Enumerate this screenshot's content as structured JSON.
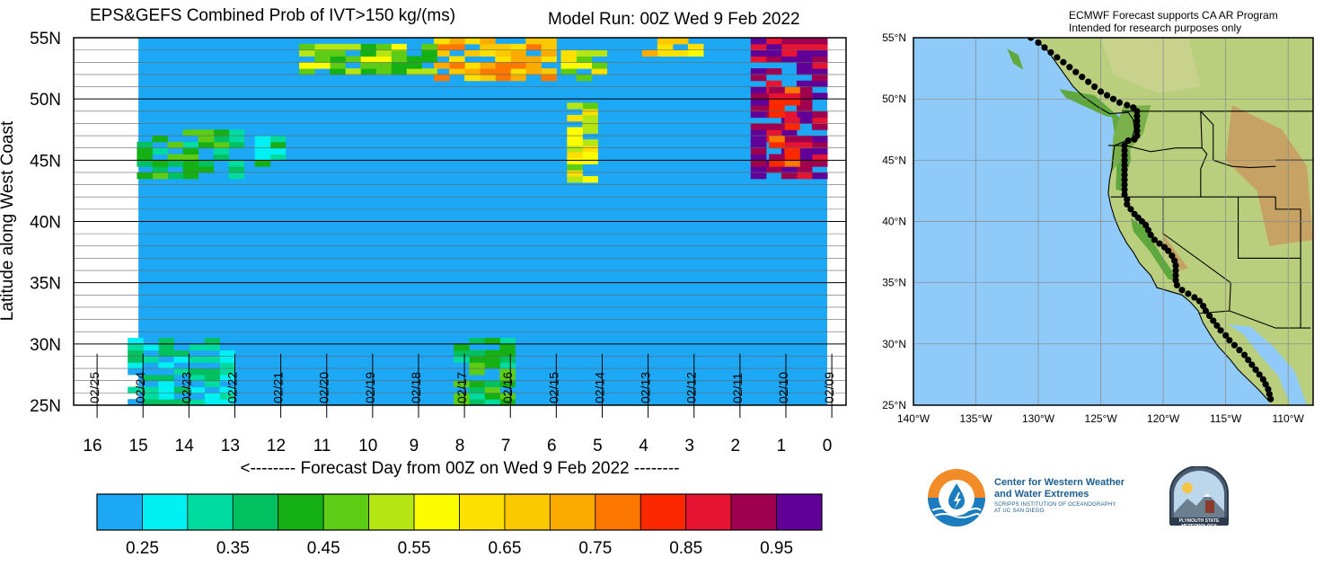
{
  "header": {
    "title_left": "EPS&GEFS Combined Prob of IVT>150 kg/(ms)",
    "title_right": "Model Run: 00Z Wed 9 Feb 2022",
    "map_credit_line1": "ECMWF Forecast supports CA AR Program",
    "map_credit_line2": "Intended for research purposes only"
  },
  "logos": {
    "cw3e_line1": "Center for Western Weather",
    "cw3e_line2": "and Water Extremes",
    "cw3e_line3": "SCRIPPS INSTITUTION OF OCEANOGRAPHY",
    "cw3e_line4": "AT UC SAN DIEGO",
    "psu_text": "PLYMOUTH STATE METEOROLOGY"
  },
  "colors": {
    "background_prob": "#1ca8f4",
    "frame": "#000000",
    "ocean": "#8fcaf8",
    "terrain_low": "#5ea83c",
    "terrain_mid": "#b9cf7d",
    "terrain_high": "#c6a264"
  },
  "chart_data": [
    {
      "type": "heatmap",
      "title": "EPS&GEFS Combined Prob of IVT>150 kg/(ms)",
      "xlabel": "<-------- Forecast Day from 00Z on Wed 9 Feb 2022 --------",
      "ylabel": "Latitude along West Coast",
      "x_axis": {
        "range": [
          16,
          0
        ],
        "reversed": true,
        "ticks": [
          16,
          15,
          14,
          13,
          12,
          11,
          10,
          9,
          8,
          7,
          6,
          5,
          4,
          3,
          2,
          1,
          0
        ]
      },
      "y_axis": {
        "range": [
          25,
          55
        ],
        "ticks": [
          "25N",
          "30N",
          "35N",
          "40N",
          "45N",
          "50N",
          "55N"
        ],
        "tick_values": [
          25,
          30,
          35,
          40,
          45,
          50,
          55
        ]
      },
      "date_labels": [
        {
          "day": 15.9,
          "text": "02/25"
        },
        {
          "day": 14.9,
          "text": "02/24"
        },
        {
          "day": 13.9,
          "text": "02/23"
        },
        {
          "day": 12.9,
          "text": "02/22"
        },
        {
          "day": 11.9,
          "text": "02/21"
        },
        {
          "day": 10.9,
          "text": "02/20"
        },
        {
          "day": 9.9,
          "text": "02/19"
        },
        {
          "day": 8.9,
          "text": "02/18"
        },
        {
          "day": 7.9,
          "text": "02/17"
        },
        {
          "day": 6.9,
          "text": "02/16"
        },
        {
          "day": 5.9,
          "text": "02/15"
        },
        {
          "day": 4.9,
          "text": "02/14"
        },
        {
          "day": 3.9,
          "text": "02/13"
        },
        {
          "day": 2.9,
          "text": "02/12"
        },
        {
          "day": 1.9,
          "text": "02/11"
        },
        {
          "day": 0.9,
          "text": "02/10"
        },
        {
          "day": -0.1,
          "text": "02/09"
        }
      ],
      "data_extent_days": [
        0,
        15
      ],
      "background_value": 0.2,
      "grid": "horizontal lines every 1 degree latitude",
      "colorbar": {
        "colors": [
          "#1ca8f4",
          "#00f0f4",
          "#00dca0",
          "#00c060",
          "#14b014",
          "#5ccd14",
          "#b4e614",
          "#fcfc00",
          "#fce000",
          "#fcc800",
          "#fcac00",
          "#fc7800",
          "#fc2800",
          "#e61432",
          "#a00050",
          "#600098"
        ],
        "tick_labels": [
          "0.25",
          "0.35",
          "0.45",
          "0.55",
          "0.65",
          "0.75",
          "0.85",
          "0.95"
        ],
        "tick_positions": [
          1,
          3,
          5,
          7,
          9,
          11,
          13,
          15
        ]
      },
      "features": [
        {
          "desc": "purple/red AR landfall",
          "day_range": [
            0,
            1.4
          ],
          "lat_range": [
            43.5,
            55
          ],
          "value": 0.95
        },
        {
          "desc": "red/orange core",
          "day_range": [
            0.6,
            1.2
          ],
          "lat_range": [
            44,
            51
          ],
          "value": 0.85
        },
        {
          "desc": "north band day 5-8",
          "day_range": [
            5.9,
            8.5
          ],
          "lat_range": [
            51.5,
            55
          ],
          "value": 0.7
        },
        {
          "desc": "north band day 8-11",
          "day_range": [
            8.5,
            11.5
          ],
          "lat_range": [
            52,
            54.5
          ],
          "value": 0.5
        },
        {
          "desc": "north patch day 2.7-3.8",
          "day_range": [
            2.7,
            3.8
          ],
          "lat_range": [
            53.5,
            55
          ],
          "value": 0.65
        },
        {
          "desc": "north patch day 4.8-6",
          "day_range": [
            4.8,
            5.6
          ],
          "lat_range": [
            51.5,
            54
          ],
          "value": 0.55
        },
        {
          "desc": "mid-lat band day 5.2",
          "day_range": [
            5.0,
            5.5
          ],
          "lat_range": [
            43.2,
            49.5
          ],
          "value": 0.55
        },
        {
          "desc": "45N band day 13-15",
          "day_range": [
            12.7,
            15
          ],
          "lat_range": [
            43.5,
            47.5
          ],
          "value": 0.4
        },
        {
          "desc": "45N patch day 12",
          "day_range": [
            11.8,
            12.4
          ],
          "lat_range": [
            44.5,
            47
          ],
          "value": 0.35
        },
        {
          "desc": "south patch day 7-8",
          "day_range": [
            6.8,
            8.0
          ],
          "lat_range": [
            25,
            30.5
          ],
          "value": 0.4
        },
        {
          "desc": "south patch day 13-15",
          "day_range": [
            12.9,
            15
          ],
          "lat_range": [
            25,
            30.3
          ],
          "value": 0.3
        }
      ]
    },
    {
      "type": "map",
      "projection": "Plate Carree",
      "lon_range": [
        -140,
        -108
      ],
      "lat_range": [
        25,
        55
      ],
      "xticks": [
        "140°W",
        "135°W",
        "130°W",
        "125°W",
        "120°W",
        "115°W",
        "110°W"
      ],
      "xtick_values": [
        -140,
        -135,
        -130,
        -125,
        -120,
        -115,
        -110
      ],
      "yticks": [
        "25°N",
        "30°N",
        "35°N",
        "40°N",
        "45°N",
        "50°N",
        "55°N"
      ],
      "ytick_values": [
        25,
        30,
        35,
        40,
        45,
        50,
        55
      ],
      "coast_points": [
        [
          -130.2,
          54.8
        ],
        [
          -129.3,
          54.0
        ],
        [
          -128.6,
          53.0
        ],
        [
          -127.9,
          52.0
        ],
        [
          -127.2,
          51.0
        ],
        [
          -126.4,
          50.2
        ],
        [
          -125.3,
          49.4
        ],
        [
          -124.3,
          48.8
        ],
        [
          -122.8,
          48.9
        ],
        [
          -122.4,
          48.3
        ],
        [
          -122.3,
          47.5
        ],
        [
          -122.5,
          46.8
        ],
        [
          -123.9,
          46.2
        ],
        [
          -124.0,
          45.4
        ],
        [
          -124.1,
          44.4
        ],
        [
          -124.3,
          43.4
        ],
        [
          -124.4,
          42.3
        ],
        [
          -124.2,
          41.3
        ],
        [
          -123.9,
          40.3
        ],
        [
          -123.5,
          39.3
        ],
        [
          -122.9,
          38.2
        ],
        [
          -122.4,
          37.5
        ],
        [
          -121.9,
          36.6
        ],
        [
          -121.0,
          35.6
        ],
        [
          -120.5,
          34.6
        ],
        [
          -119.5,
          34.3
        ],
        [
          -118.5,
          34.0
        ],
        [
          -117.8,
          33.4
        ],
        [
          -117.2,
          32.7
        ],
        [
          -116.8,
          31.7
        ],
        [
          -116.2,
          30.7
        ],
        [
          -115.6,
          29.8
        ],
        [
          -114.7,
          28.8
        ],
        [
          -114.0,
          27.9
        ],
        [
          -113.2,
          27.1
        ],
        [
          -112.3,
          26.2
        ],
        [
          -111.6,
          25.4
        ]
      ],
      "dots": [
        [
          -130.6,
          55.0
        ],
        [
          -130.0,
          54.6
        ],
        [
          -129.5,
          54.2
        ],
        [
          -129.0,
          53.8
        ],
        [
          -128.5,
          53.4
        ],
        [
          -128.0,
          53.0
        ],
        [
          -127.5,
          52.6
        ],
        [
          -127.0,
          52.2
        ],
        [
          -126.5,
          51.8
        ],
        [
          -126.0,
          51.4
        ],
        [
          -125.5,
          51.0
        ],
        [
          -125.0,
          50.6
        ],
        [
          -124.5,
          50.3
        ],
        [
          -124.0,
          50.0
        ],
        [
          -123.5,
          49.7
        ],
        [
          -122.9,
          49.5
        ],
        [
          -122.4,
          49.3
        ],
        [
          -122.1,
          49.0
        ],
        [
          -122.1,
          48.6
        ],
        [
          -122.1,
          48.2
        ],
        [
          -122.1,
          47.8
        ],
        [
          -122.1,
          47.4
        ],
        [
          -122.1,
          47.0
        ],
        [
          -122.3,
          46.7
        ],
        [
          -122.8,
          46.6
        ],
        [
          -123.1,
          46.2
        ],
        [
          -123.1,
          45.8
        ],
        [
          -123.1,
          45.4
        ],
        [
          -123.1,
          45.0
        ],
        [
          -123.1,
          44.6
        ],
        [
          -123.1,
          44.2
        ],
        [
          -123.1,
          43.8
        ],
        [
          -123.1,
          43.4
        ],
        [
          -123.1,
          43.0
        ],
        [
          -123.1,
          42.6
        ],
        [
          -123.1,
          42.2
        ],
        [
          -122.9,
          41.8
        ],
        [
          -122.9,
          41.4
        ],
        [
          -122.6,
          41.0
        ],
        [
          -122.3,
          40.6
        ],
        [
          -122.0,
          40.3
        ],
        [
          -121.7,
          40.0
        ],
        [
          -121.4,
          39.7
        ],
        [
          -121.2,
          39.3
        ],
        [
          -121.0,
          38.9
        ],
        [
          -120.7,
          38.5
        ],
        [
          -120.3,
          38.2
        ],
        [
          -119.9,
          37.9
        ],
        [
          -119.6,
          37.6
        ],
        [
          -119.3,
          37.2
        ],
        [
          -119.1,
          36.8
        ],
        [
          -119.0,
          36.4
        ],
        [
          -119.0,
          36.0
        ],
        [
          -119.0,
          35.6
        ],
        [
          -119.0,
          35.2
        ],
        [
          -118.9,
          34.8
        ],
        [
          -118.5,
          34.4
        ],
        [
          -118.0,
          34.1
        ],
        [
          -117.5,
          33.8
        ],
        [
          -117.1,
          33.5
        ],
        [
          -116.8,
          33.1
        ],
        [
          -116.6,
          32.7
        ],
        [
          -116.3,
          32.3
        ],
        [
          -116.0,
          31.9
        ],
        [
          -115.7,
          31.5
        ],
        [
          -115.4,
          31.1
        ],
        [
          -115.0,
          30.7
        ],
        [
          -114.7,
          30.3
        ],
        [
          -114.3,
          29.9
        ],
        [
          -113.9,
          29.5
        ],
        [
          -113.5,
          29.1
        ],
        [
          -113.2,
          28.7
        ],
        [
          -112.9,
          28.3
        ],
        [
          -112.6,
          27.9
        ],
        [
          -112.3,
          27.5
        ],
        [
          -112.0,
          27.1
        ],
        [
          -111.8,
          26.7
        ],
        [
          -111.6,
          26.3
        ],
        [
          -111.5,
          25.9
        ],
        [
          -111.4,
          25.5
        ]
      ]
    }
  ]
}
